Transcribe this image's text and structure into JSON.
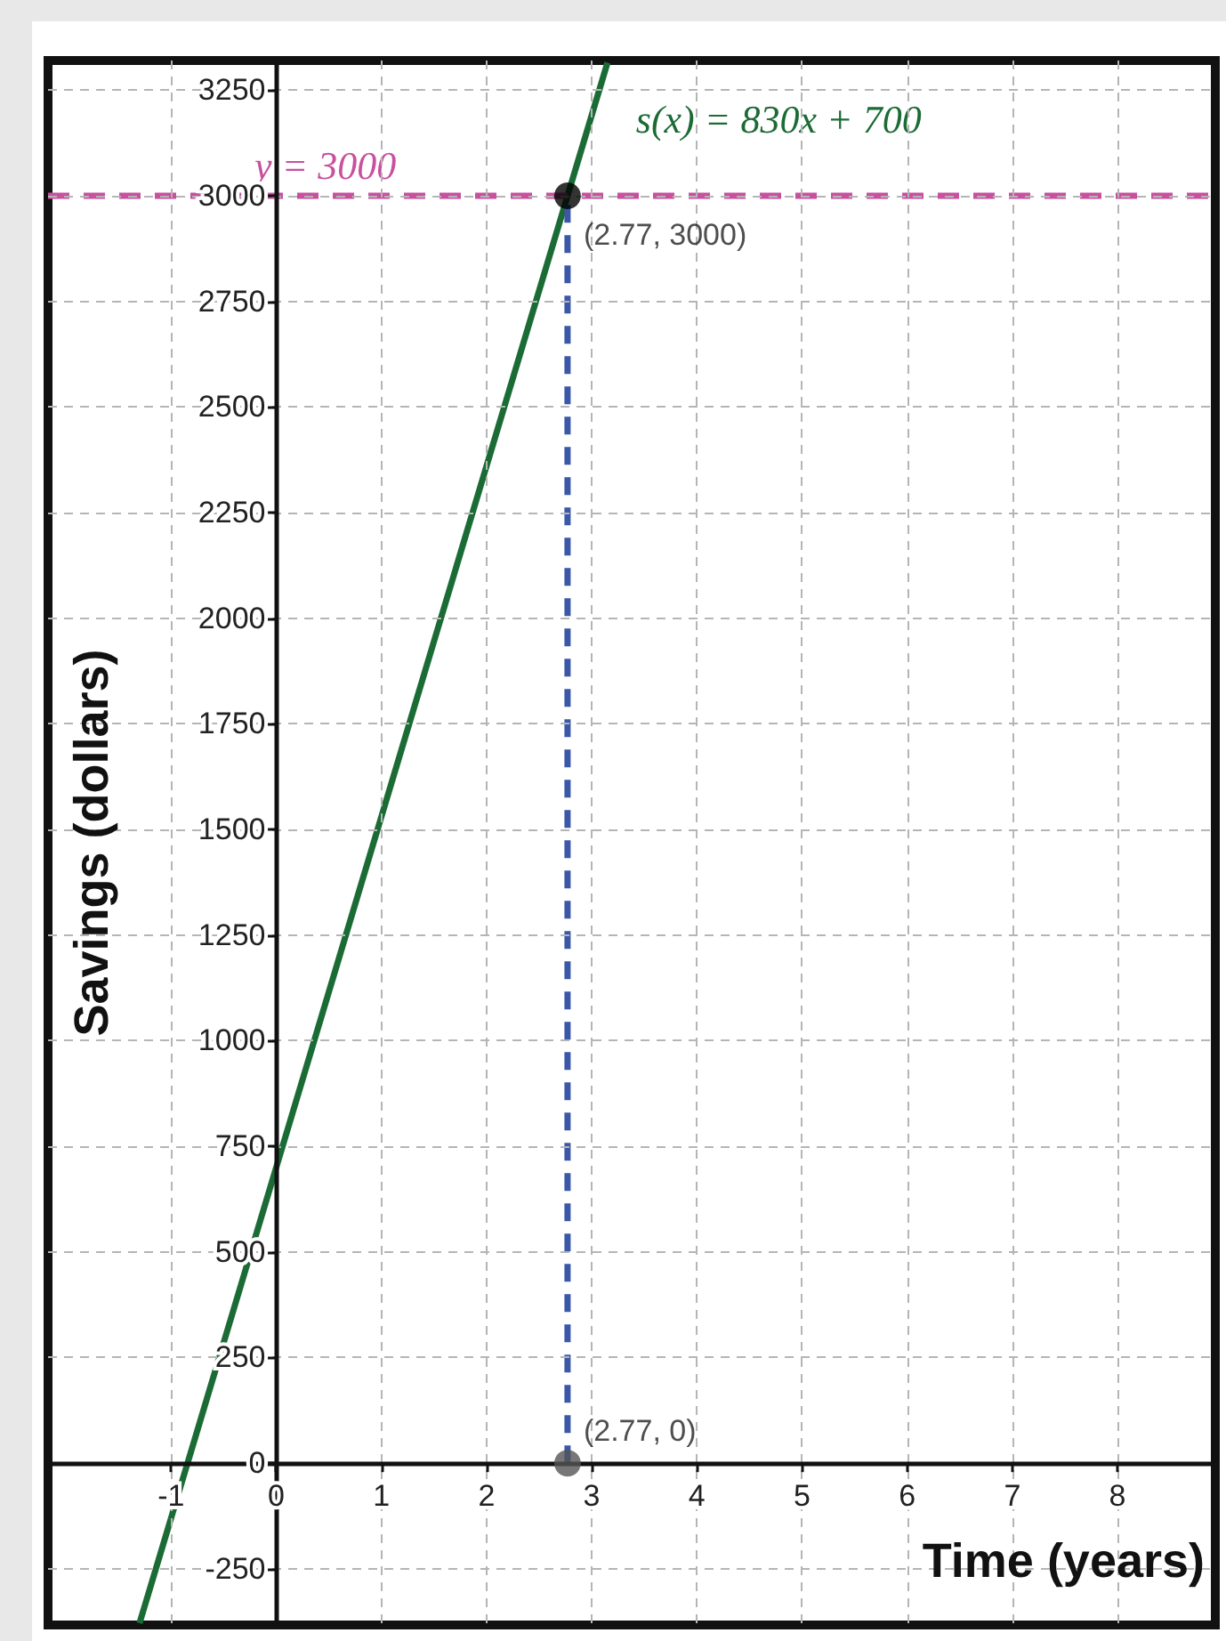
{
  "chart_data": {
    "type": "line",
    "ylabel": "Savings (dollars)",
    "xlabel": "Time (years)",
    "xlim": [
      -2.17,
      8.93
    ],
    "ylim": [
      -383,
      3320
    ],
    "xticks": [
      -1,
      0,
      1,
      2,
      3,
      4,
      5,
      6,
      7,
      8
    ],
    "yticks": [
      -250,
      0,
      250,
      500,
      750,
      1000,
      1250,
      1500,
      1750,
      2000,
      2250,
      2500,
      2750,
      3000,
      3250
    ],
    "grid": true,
    "series": [
      {
        "name": "s(x) = 830x + 700",
        "color": "#1b6b35",
        "x": [
          -1.3,
          3.15
        ],
        "values": [
          -379,
          3315
        ],
        "marker": "none",
        "line_style": "solid"
      },
      {
        "type": "line",
        "color": "#3b57a8",
        "x": [
          2.77,
          2.77
        ],
        "values": [
          0,
          3000
        ],
        "marker": "none",
        "line_style": "dashed"
      },
      {
        "type": "scatter",
        "color": "#000000",
        "x": [
          2.77
        ],
        "values": [
          3000
        ],
        "marker": "circle"
      },
      {
        "type": "scatter",
        "color": "#555555",
        "x": [
          2.77
        ],
        "values": [
          0
        ],
        "marker": "circle"
      }
    ],
    "ref_lines": [
      {
        "axis": "y",
        "value": 3000,
        "label": "y = 3000",
        "color": "#c8509e",
        "line_style": "dashed"
      }
    ],
    "annotations": [
      {
        "text": "(2.77, 3000)",
        "x": 2.77,
        "y": 3000
      },
      {
        "text": "(2.77, 0)",
        "x": 2.77,
        "y": 0
      }
    ]
  }
}
